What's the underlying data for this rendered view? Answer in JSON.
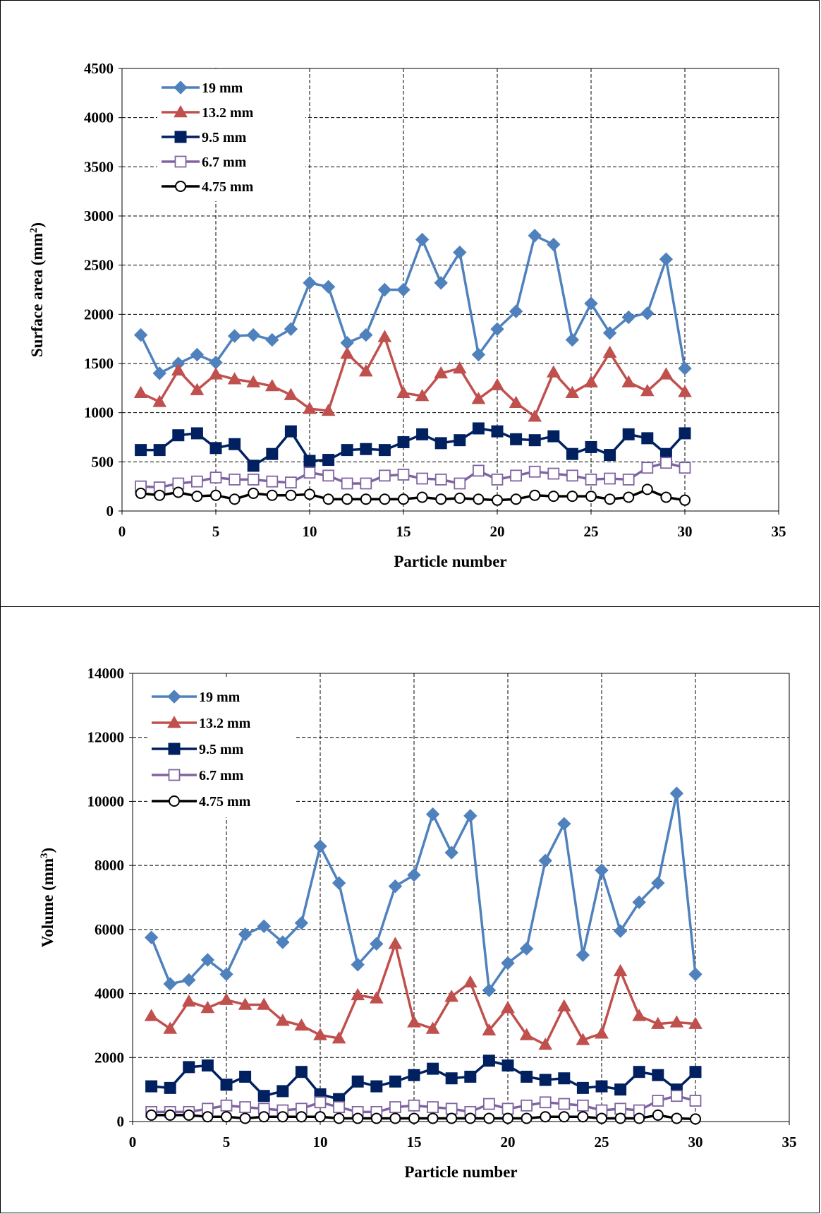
{
  "chart_data": [
    {
      "type": "line",
      "title": "",
      "xlabel": "Particle number",
      "ylabel": "Surface area (mm",
      "ylabel_sup": "2",
      "ylabel_end": ")",
      "xlim": [
        0,
        35
      ],
      "ylim": [
        0,
        4500
      ],
      "xticks": [
        0,
        5,
        10,
        15,
        20,
        25,
        30,
        35
      ],
      "yticks": [
        0,
        500,
        1000,
        1500,
        2000,
        2500,
        3000,
        3500,
        4000,
        4500
      ],
      "grid": true,
      "legend_position": "top-left",
      "x": [
        1,
        2,
        3,
        4,
        5,
        6,
        7,
        8,
        9,
        10,
        11,
        12,
        13,
        14,
        15,
        16,
        17,
        18,
        19,
        20,
        21,
        22,
        23,
        24,
        25,
        26,
        27,
        28,
        29,
        30
      ],
      "series": [
        {
          "name": "19 mm",
          "color": "#4f81bd",
          "marker": "diamond",
          "values": [
            1790,
            1400,
            1500,
            1590,
            1510,
            1780,
            1790,
            1740,
            1850,
            2320,
            2280,
            1710,
            1790,
            2250,
            2250,
            2760,
            2320,
            2630,
            1590,
            1850,
            2030,
            2800,
            2710,
            1740,
            2110,
            1810,
            1970,
            2010,
            2560,
            1450
          ]
        },
        {
          "name": "13.2 mm",
          "color": "#c0504d",
          "marker": "triangle",
          "values": [
            1200,
            1110,
            1430,
            1230,
            1390,
            1340,
            1310,
            1270,
            1180,
            1040,
            1020,
            1600,
            1420,
            1770,
            1200,
            1170,
            1400,
            1450,
            1140,
            1280,
            1100,
            960,
            1410,
            1200,
            1310,
            1610,
            1310,
            1220,
            1390,
            1210
          ]
        },
        {
          "name": "9.5 mm",
          "color": "#002060",
          "marker": "square",
          "values": [
            620,
            620,
            770,
            790,
            640,
            680,
            460,
            580,
            810,
            510,
            520,
            620,
            630,
            620,
            700,
            780,
            690,
            720,
            840,
            810,
            730,
            720,
            760,
            580,
            650,
            570,
            780,
            740,
            580,
            790
          ]
        },
        {
          "name": "6.7 mm",
          "color": "#8064a2",
          "marker": "square-open",
          "values": [
            250,
            240,
            280,
            300,
            340,
            320,
            320,
            300,
            290,
            390,
            360,
            280,
            280,
            360,
            370,
            330,
            320,
            280,
            410,
            320,
            360,
            400,
            380,
            360,
            320,
            330,
            320,
            440,
            490,
            440
          ]
        },
        {
          "name": "4.75 mm",
          "color": "#000000",
          "marker": "circle-open",
          "values": [
            180,
            160,
            190,
            150,
            160,
            120,
            180,
            160,
            160,
            170,
            120,
            120,
            120,
            120,
            120,
            140,
            120,
            130,
            120,
            110,
            120,
            160,
            150,
            150,
            150,
            120,
            140,
            220,
            140,
            110
          ]
        }
      ]
    },
    {
      "type": "line",
      "title": "",
      "xlabel": "Particle number",
      "ylabel": "Volume (mm",
      "ylabel_sup": "3",
      "ylabel_end": ")",
      "xlim": [
        0,
        35
      ],
      "ylim": [
        0,
        14000
      ],
      "xticks": [
        0,
        5,
        10,
        15,
        20,
        25,
        30,
        35
      ],
      "yticks": [
        0,
        2000,
        4000,
        6000,
        8000,
        10000,
        12000,
        14000
      ],
      "grid": true,
      "legend_position": "top-left",
      "x": [
        1,
        2,
        3,
        4,
        5,
        6,
        7,
        8,
        9,
        10,
        11,
        12,
        13,
        14,
        15,
        16,
        17,
        18,
        19,
        20,
        21,
        22,
        23,
        24,
        25,
        26,
        27,
        28,
        29,
        30
      ],
      "series": [
        {
          "name": "19 mm",
          "color": "#4f81bd",
          "marker": "diamond",
          "values": [
            5750,
            4300,
            4420,
            5050,
            4600,
            5850,
            6100,
            5600,
            6200,
            8600,
            7450,
            4900,
            5550,
            7350,
            7700,
            9600,
            8400,
            9550,
            4100,
            4950,
            5400,
            8150,
            9300,
            5200,
            7850,
            5950,
            6850,
            7450,
            10250,
            4600
          ]
        },
        {
          "name": "13.2 mm",
          "color": "#c0504d",
          "marker": "triangle",
          "values": [
            3300,
            2900,
            3750,
            3550,
            3800,
            3650,
            3650,
            3150,
            3000,
            2700,
            2600,
            3950,
            3850,
            5550,
            3100,
            2900,
            3900,
            4350,
            2850,
            3550,
            2700,
            2400,
            3600,
            2550,
            2750,
            4700,
            3300,
            3050,
            3100,
            3050
          ]
        },
        {
          "name": "9.5 mm",
          "color": "#002060",
          "marker": "square",
          "values": [
            1100,
            1050,
            1700,
            1750,
            1150,
            1400,
            800,
            950,
            1550,
            850,
            700,
            1250,
            1100,
            1250,
            1450,
            1650,
            1350,
            1400,
            1900,
            1750,
            1400,
            1300,
            1350,
            1050,
            1100,
            1000,
            1550,
            1450,
            1000,
            1550
          ]
        },
        {
          "name": "6.7 mm",
          "color": "#8064a2",
          "marker": "square-open",
          "values": [
            300,
            300,
            300,
            400,
            500,
            450,
            400,
            350,
            400,
            600,
            450,
            300,
            300,
            450,
            500,
            450,
            400,
            300,
            550,
            400,
            500,
            600,
            550,
            500,
            350,
            400,
            350,
            650,
            800,
            650
          ]
        },
        {
          "name": "4.75 mm",
          "color": "#000000",
          "marker": "circle-open",
          "values": [
            200,
            200,
            200,
            150,
            150,
            100,
            150,
            150,
            150,
            150,
            100,
            100,
            100,
            100,
            100,
            100,
            100,
            100,
            100,
            100,
            100,
            150,
            150,
            150,
            100,
            100,
            100,
            200,
            100,
            80
          ]
        }
      ]
    }
  ]
}
